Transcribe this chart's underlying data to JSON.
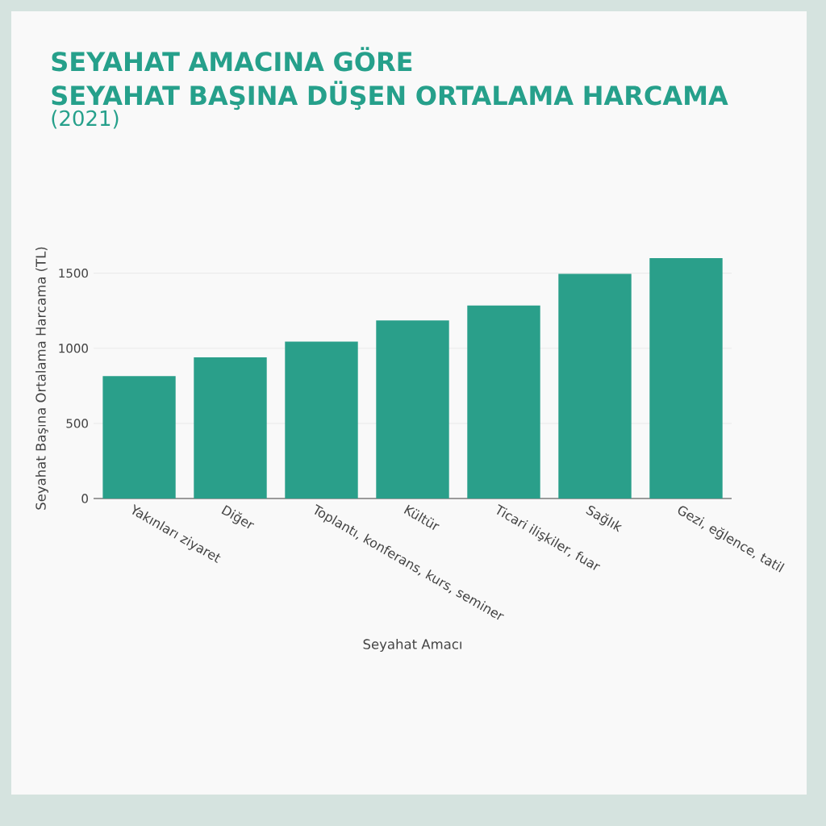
{
  "chart_data": {
    "type": "bar",
    "title": "SEYAHAT AMACINA GÖRE\nSEYAHAT BAŞINA DÜŞEN ORTALAMA HARCAMA",
    "subtitle": "(2021)",
    "xlabel": "Seyahat Amacı",
    "ylabel": "Seyahat Başına Ortalama Harcama (TL)",
    "categories": [
      "Yakınları ziyaret",
      "Diğer",
      "Toplantı, konferans, kurs, seminer",
      "Kültür",
      "Ticari ilişkiler, fuar",
      "Sağlık",
      "Gezi, eğlence, tatil"
    ],
    "values": [
      815,
      940,
      1045,
      1185,
      1285,
      1495,
      1600
    ],
    "color": "#2a9f8a",
    "ylim": [
      0,
      1600
    ],
    "yticks": [
      0,
      500,
      1000,
      1500
    ],
    "grid": "y"
  }
}
